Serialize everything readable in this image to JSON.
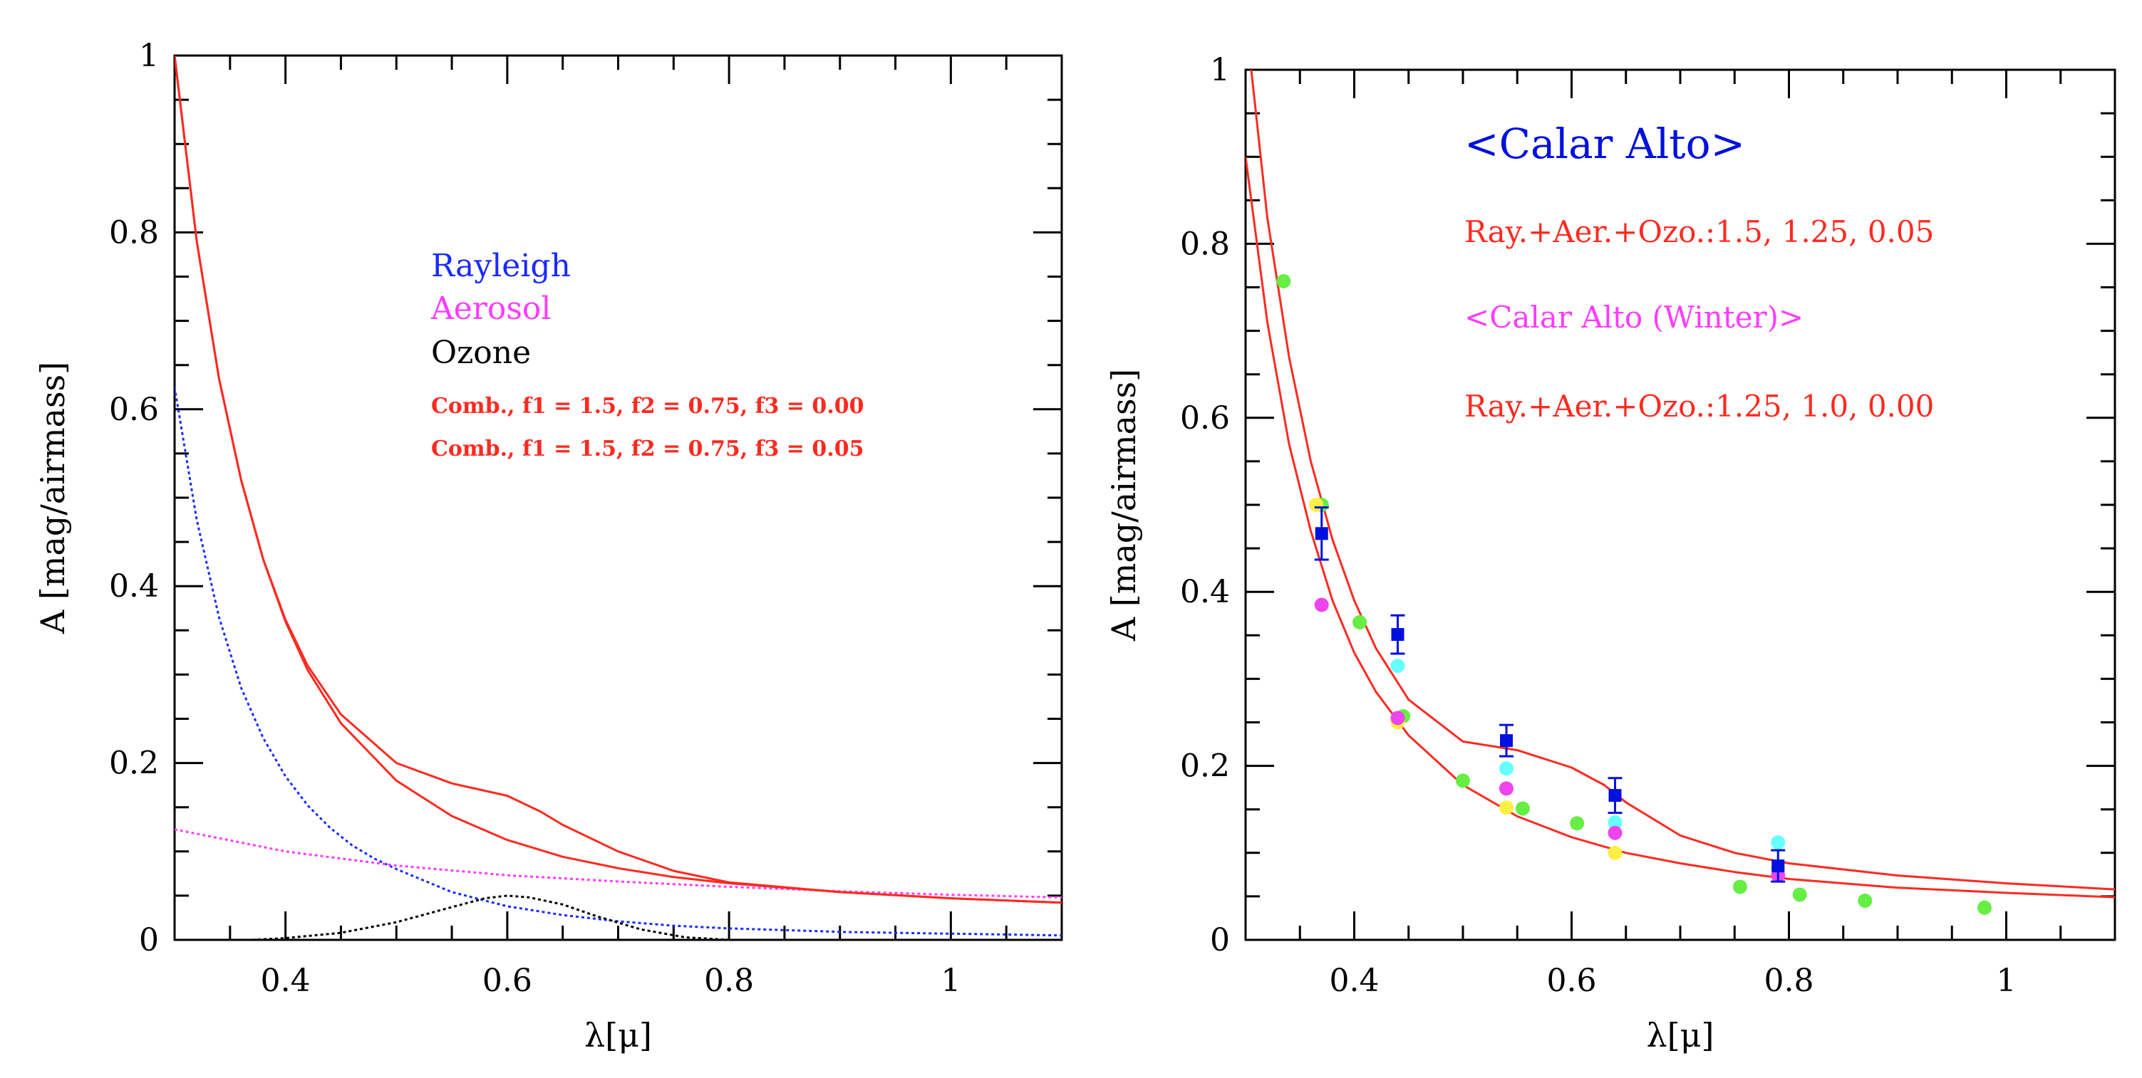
{
  "colors": {
    "axes": "#000000",
    "red": "#ff2a20",
    "blue": "#1a2bff",
    "magenta": "#ff3cff",
    "black": "#000000",
    "green": "#66ee44",
    "cyan": "#66ffff",
    "yellow": "#ffee44",
    "pink": "#ee44ee",
    "navy": "#0010dd"
  },
  "chart_data": [
    {
      "type": "line",
      "xlabel": "λ[μ]",
      "ylabel": "A [mag/airmass]",
      "xlim": [
        0.3,
        1.1
      ],
      "ylim": [
        0,
        1
      ],
      "x_ticks": [
        0.4,
        0.6,
        0.8,
        1
      ],
      "x_tick_labels": [
        "0.4",
        "0.6",
        "0.8",
        "1"
      ],
      "y_ticks": [
        0,
        0.2,
        0.4,
        0.6,
        0.8,
        1
      ],
      "y_tick_labels": [
        "0",
        "0.2",
        "0.4",
        "0.6",
        "0.8",
        "1"
      ],
      "grid": false,
      "legend": [
        {
          "text": "Rayleigh",
          "color": "blue",
          "style": "big"
        },
        {
          "text": "Aerosol",
          "color": "magenta",
          "style": "big"
        },
        {
          "text": "Ozone",
          "color": "black",
          "style": "big"
        },
        {
          "text": "Comb., f1 = 1.5, f2 = 0.75, f3 = 0.00",
          "color": "red",
          "style": "small"
        },
        {
          "text": "Comb., f1 = 1.5, f2 = 0.75, f3 = 0.05",
          "color": "red",
          "style": "small"
        }
      ],
      "series": [
        {
          "name": "Rayleigh",
          "color": "blue",
          "dash": "dotted",
          "x": [
            0.3,
            0.32,
            0.34,
            0.36,
            0.38,
            0.4,
            0.42,
            0.44,
            0.46,
            0.48,
            0.5,
            0.55,
            0.6,
            0.65,
            0.7,
            0.75,
            0.8,
            0.85,
            0.9,
            0.95,
            1.0,
            1.05,
            1.1
          ],
          "y": [
            0.625,
            0.475,
            0.365,
            0.285,
            0.228,
            0.185,
            0.152,
            0.127,
            0.107,
            0.092,
            0.08,
            0.054,
            0.038,
            0.028,
            0.021,
            0.016,
            0.013,
            0.011,
            0.009,
            0.008,
            0.007,
            0.006,
            0.005
          ]
        },
        {
          "name": "Aerosol",
          "color": "magenta",
          "dash": "dotted",
          "x": [
            0.3,
            0.4,
            0.5,
            0.6,
            0.7,
            0.8,
            0.9,
            1.0,
            1.1
          ],
          "y": [
            0.125,
            0.1,
            0.084,
            0.073,
            0.066,
            0.06,
            0.055,
            0.051,
            0.048
          ]
        },
        {
          "name": "Ozone",
          "color": "black",
          "dash": "dotted",
          "x": [
            0.37,
            0.4,
            0.45,
            0.5,
            0.55,
            0.58,
            0.6,
            0.62,
            0.65,
            0.68,
            0.72,
            0.76,
            0.8
          ],
          "y": [
            0.0,
            0.002,
            0.008,
            0.02,
            0.037,
            0.047,
            0.05,
            0.048,
            0.04,
            0.027,
            0.012,
            0.003,
            0.0
          ]
        },
        {
          "name": "Comb., f1 = 1.5, f2 = 0.75, f3 = 0.00",
          "color": "red",
          "dash": "solid",
          "x": [
            0.3,
            0.32,
            0.34,
            0.36,
            0.38,
            0.4,
            0.42,
            0.45,
            0.5,
            0.55,
            0.6,
            0.65,
            0.7,
            0.75,
            0.8,
            0.9,
            1.0,
            1.1
          ],
          "y": [
            1.0,
            0.79,
            0.635,
            0.52,
            0.43,
            0.36,
            0.305,
            0.245,
            0.18,
            0.14,
            0.113,
            0.094,
            0.081,
            0.071,
            0.064,
            0.054,
            0.047,
            0.042
          ]
        },
        {
          "name": "Comb., f1 = 1.5, f2 = 0.75, f3 = 0.05",
          "color": "red",
          "dash": "solid",
          "x": [
            0.3,
            0.32,
            0.34,
            0.36,
            0.38,
            0.4,
            0.42,
            0.45,
            0.5,
            0.55,
            0.6,
            0.63,
            0.65,
            0.7,
            0.75,
            0.8,
            0.9,
            1.0,
            1.1
          ],
          "y": [
            1.0,
            0.79,
            0.635,
            0.52,
            0.43,
            0.362,
            0.31,
            0.255,
            0.2,
            0.177,
            0.163,
            0.145,
            0.13,
            0.1,
            0.078,
            0.065,
            0.054,
            0.047,
            0.042
          ]
        }
      ]
    },
    {
      "type": "scatter",
      "xlabel": "λ[μ]",
      "ylabel": "A [mag/airmass]",
      "xlim": [
        0.3,
        1.1
      ],
      "ylim": [
        0,
        1
      ],
      "x_ticks": [
        0.4,
        0.6,
        0.8,
        1
      ],
      "x_tick_labels": [
        "0.4",
        "0.6",
        "0.8",
        "1"
      ],
      "y_ticks": [
        0,
        0.2,
        0.4,
        0.6,
        0.8,
        1
      ],
      "y_tick_labels": [
        "0",
        "0.2",
        "0.4",
        "0.6",
        "0.8",
        "1"
      ],
      "grid": false,
      "annotations": [
        {
          "text": "<Calar Alto>",
          "color": "navy",
          "style": "title"
        },
        {
          "text": "Ray.+Aer.+Ozo.:1.5, 1.25, 0.05",
          "color": "red",
          "style": "line"
        },
        {
          "text": "<Calar Alto (Winter)>",
          "color": "magenta",
          "style": "line"
        },
        {
          "text": "Ray.+Aer.+Ozo.:1.25, 1.0, 0.00",
          "color": "red",
          "style": "line"
        }
      ],
      "curves": [
        {
          "color": "red",
          "x": [
            0.3,
            0.32,
            0.34,
            0.36,
            0.38,
            0.4,
            0.42,
            0.45,
            0.5,
            0.55,
            0.6,
            0.63,
            0.65,
            0.7,
            0.75,
            0.8,
            0.9,
            1.0,
            1.1
          ],
          "y": [
            1.06,
            0.83,
            0.67,
            0.55,
            0.46,
            0.39,
            0.335,
            0.276,
            0.228,
            0.218,
            0.198,
            0.178,
            0.158,
            0.12,
            0.1,
            0.088,
            0.074,
            0.065,
            0.058
          ]
        },
        {
          "color": "red",
          "x": [
            0.3,
            0.32,
            0.34,
            0.36,
            0.38,
            0.4,
            0.42,
            0.45,
            0.5,
            0.55,
            0.6,
            0.65,
            0.7,
            0.75,
            0.8,
            0.9,
            1.0,
            1.1
          ],
          "y": [
            0.9,
            0.71,
            0.57,
            0.47,
            0.39,
            0.33,
            0.285,
            0.235,
            0.178,
            0.142,
            0.118,
            0.1,
            0.088,
            0.078,
            0.07,
            0.06,
            0.054,
            0.049
          ]
        }
      ],
      "points": [
        {
          "x": 0.335,
          "y": 0.757,
          "color": "green"
        },
        {
          "x": 0.37,
          "y": 0.5,
          "color": "green"
        },
        {
          "x": 0.405,
          "y": 0.365,
          "color": "green"
        },
        {
          "x": 0.445,
          "y": 0.257,
          "color": "green"
        },
        {
          "x": 0.5,
          "y": 0.183,
          "color": "green"
        },
        {
          "x": 0.555,
          "y": 0.151,
          "color": "green"
        },
        {
          "x": 0.605,
          "y": 0.134,
          "color": "green"
        },
        {
          "x": 0.755,
          "y": 0.061,
          "color": "green"
        },
        {
          "x": 0.81,
          "y": 0.052,
          "color": "green"
        },
        {
          "x": 0.87,
          "y": 0.045,
          "color": "green"
        },
        {
          "x": 0.98,
          "y": 0.037,
          "color": "green"
        },
        {
          "x": 0.365,
          "y": 0.5,
          "color": "yellow"
        },
        {
          "x": 0.44,
          "y": 0.25,
          "color": "yellow"
        },
        {
          "x": 0.54,
          "y": 0.152,
          "color": "yellow"
        },
        {
          "x": 0.64,
          "y": 0.1,
          "color": "yellow"
        },
        {
          "x": 0.79,
          "y": 0.083,
          "color": "yellow"
        },
        {
          "x": 0.44,
          "y": 0.315,
          "color": "cyan"
        },
        {
          "x": 0.54,
          "y": 0.197,
          "color": "cyan"
        },
        {
          "x": 0.64,
          "y": 0.135,
          "color": "cyan"
        },
        {
          "x": 0.79,
          "y": 0.112,
          "color": "cyan"
        },
        {
          "x": 0.37,
          "y": 0.385,
          "color": "pink"
        },
        {
          "x": 0.44,
          "y": 0.255,
          "color": "pink"
        },
        {
          "x": 0.54,
          "y": 0.174,
          "color": "pink"
        },
        {
          "x": 0.64,
          "y": 0.123,
          "color": "pink"
        },
        {
          "x": 0.79,
          "y": 0.074,
          "color": "pink"
        }
      ],
      "errorbar_points": [
        {
          "x": 0.37,
          "y": 0.467,
          "err": 0.03
        },
        {
          "x": 0.44,
          "y": 0.351,
          "err": 0.022
        },
        {
          "x": 0.54,
          "y": 0.229,
          "err": 0.018
        },
        {
          "x": 0.64,
          "y": 0.166,
          "err": 0.02
        },
        {
          "x": 0.79,
          "y": 0.085,
          "err": 0.018
        }
      ]
    }
  ]
}
